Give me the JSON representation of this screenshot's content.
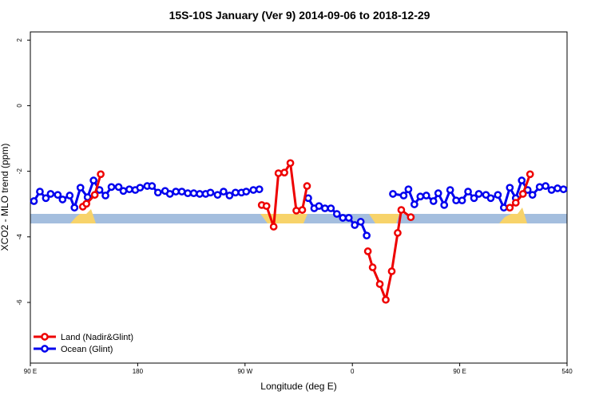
{
  "chart_data": {
    "type": "line",
    "title": "15S-10S January (Ver 9)   2014-09-06 to 2018-12-29",
    "x_label": "Longitude (deg E)",
    "y_label": "XCO2 - MLO trend (ppm)",
    "xlim": [
      90,
      540
    ],
    "ylim": [
      -7.85,
      2.25
    ],
    "xticks": [
      {
        "value": 90,
        "label": "90 E"
      },
      180,
      {
        "value": 270,
        "label": "90 W"
      },
      {
        "value": 360,
        "label": "0"
      },
      {
        "value": 450,
        "label": "90 E"
      },
      540
    ],
    "yticks": [
      2,
      0,
      -2,
      -4,
      -6
    ],
    "legend": "bottom-left",
    "series": [
      {
        "name": "Ocean (Glint)",
        "color": "#0000ee",
        "x": [
          93,
          98,
          103,
          107,
          113,
          117,
          123,
          127,
          132,
          138,
          143,
          148,
          153,
          158,
          164,
          168,
          173,
          178,
          182,
          188,
          192,
          197,
          203,
          207,
          212,
          217,
          222,
          227,
          232,
          237,
          241,
          247,
          252,
          257,
          262,
          267,
          271,
          277,
          282,
          300,
          323,
          328,
          332,
          337,
          342,
          347,
          352,
          357,
          362,
          367,
          372,
          380,
          394,
          403,
          407,
          412,
          417,
          422,
          428,
          432,
          437,
          442,
          447,
          452,
          457,
          462,
          466,
          472,
          476,
          482,
          487,
          492,
          497,
          502,
          507,
          511,
          517,
          522,
          527,
          532,
          537
        ],
        "values": [
          -2.91,
          -2.62,
          -2.82,
          -2.69,
          -2.72,
          -2.86,
          -2.74,
          -3.11,
          -2.5,
          -2.79,
          -2.28,
          -2.57,
          -2.74,
          -2.48,
          -2.48,
          -2.6,
          -2.55,
          -2.57,
          -2.5,
          -2.45,
          -2.45,
          -2.65,
          -2.6,
          -2.69,
          -2.62,
          -2.62,
          -2.67,
          -2.67,
          -2.69,
          -2.69,
          -2.65,
          -2.72,
          -2.62,
          -2.74,
          -2.65,
          -2.65,
          -2.62,
          -2.57,
          -2.55,
          null,
          -2.82,
          -3.13,
          -3.06,
          -3.13,
          -3.13,
          -3.3,
          -3.42,
          -3.42,
          -3.64,
          -3.54,
          -3.96,
          null,
          -2.69,
          -2.74,
          -2.55,
          -3.01,
          -2.77,
          -2.74,
          -2.91,
          -2.67,
          -3.03,
          -2.57,
          -2.89,
          -2.89,
          -2.62,
          -2.82,
          -2.69,
          -2.72,
          -2.82,
          -2.72,
          -3.11,
          -2.5,
          -2.82,
          -2.28,
          -2.57,
          -2.72,
          -2.48,
          -2.45,
          -2.57,
          -2.52,
          -2.55
        ]
      },
      {
        "name": "Land (Nadir&Glint)",
        "color": "#ee0000",
        "x": [
          134,
          137,
          144,
          149,
          200,
          284,
          288,
          294,
          298,
          303,
          308,
          313,
          318,
          322,
          350,
          373,
          377,
          383,
          388,
          393,
          398,
          401,
          409,
          450,
          492,
          497,
          503,
          509
        ],
        "values": [
          -3.08,
          -2.99,
          -2.72,
          -2.09,
          null,
          -3.03,
          -3.06,
          -3.69,
          -2.06,
          -2.04,
          -1.75,
          -3.2,
          -3.18,
          -2.45,
          null,
          -4.44,
          -4.93,
          -5.44,
          -5.92,
          -5.05,
          -3.88,
          -3.18,
          -3.4,
          null,
          -3.11,
          -2.96,
          -2.69,
          -2.09
        ]
      }
    ]
  }
}
